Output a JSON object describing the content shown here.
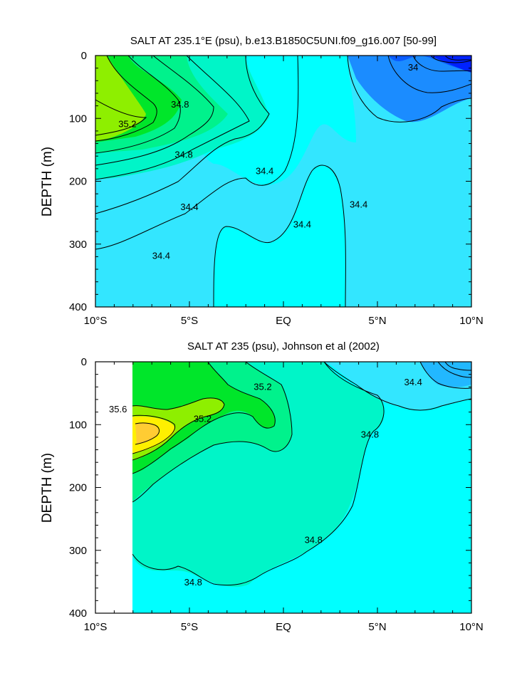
{
  "chart_data": [
    {
      "type": "heatmap",
      "title": "SALT AT 235.1°E (psu), b.e13.B1850C5UNI.f09_g16.007 [50-99]",
      "ylabel": "DEPTH (m)",
      "xlabel": "",
      "x_ticks": [
        {
          "value": -10,
          "label": "10°S"
        },
        {
          "value": -5,
          "label": "5°S"
        },
        {
          "value": 0,
          "label": "EQ"
        },
        {
          "value": 5,
          "label": "5°N"
        },
        {
          "value": 10,
          "label": "10°N"
        }
      ],
      "y_ticks": [
        0,
        100,
        200,
        300,
        400
      ],
      "xlim": [
        -10,
        10
      ],
      "ylim": [
        400,
        0
      ],
      "contour_labels": [
        {
          "text": "34.8",
          "lat": -5.5,
          "depth": 77
        },
        {
          "text": "35.2",
          "lat": -8.3,
          "depth": 108
        },
        {
          "text": "34.8",
          "lat": -5.3,
          "depth": 157
        },
        {
          "text": "34.4",
          "lat": -1.0,
          "depth": 183
        },
        {
          "text": "34.4",
          "lat": -5.0,
          "depth": 240
        },
        {
          "text": "34.4",
          "lat": 1.0,
          "depth": 268
        },
        {
          "text": "34.4",
          "lat": 4.0,
          "depth": 236
        },
        {
          "text": "34.4",
          "lat": -6.5,
          "depth": 318
        },
        {
          "text": "34",
          "lat": 6.9,
          "depth": 18
        }
      ]
    },
    {
      "type": "heatmap",
      "title": "SALT AT 235 (psu), Johnson et al (2002)",
      "ylabel": "DEPTH (m)",
      "xlabel": "",
      "x_ticks": [
        {
          "value": -10,
          "label": "10°S"
        },
        {
          "value": -5,
          "label": "5°S"
        },
        {
          "value": 0,
          "label": "EQ"
        },
        {
          "value": 5,
          "label": "5°N"
        },
        {
          "value": 10,
          "label": "10°N"
        }
      ],
      "y_ticks": [
        0,
        100,
        200,
        300,
        400
      ],
      "xlim": [
        -10,
        10
      ],
      "ylim": [
        400,
        0
      ],
      "contour_labels": [
        {
          "text": "35.6",
          "lat": -8.8,
          "depth": 75
        },
        {
          "text": "35.2",
          "lat": -4.3,
          "depth": 90
        },
        {
          "text": "35.2",
          "lat": -1.1,
          "depth": 39
        },
        {
          "text": "34.8",
          "lat": 4.6,
          "depth": 115
        },
        {
          "text": "34.8",
          "lat": -4.8,
          "depth": 350
        },
        {
          "text": "34.8",
          "lat": 1.6,
          "depth": 283
        },
        {
          "text": "34.4",
          "lat": 6.9,
          "depth": 32
        }
      ]
    }
  ],
  "palette": [
    "#0022ff",
    "#0a5cff",
    "#1b8cff",
    "#22b8ff",
    "#33e6ff",
    "#00ffff",
    "#00f5c8",
    "#00f28c",
    "#00e62a",
    "#8eef00",
    "#fff000",
    "#ffcc33"
  ]
}
